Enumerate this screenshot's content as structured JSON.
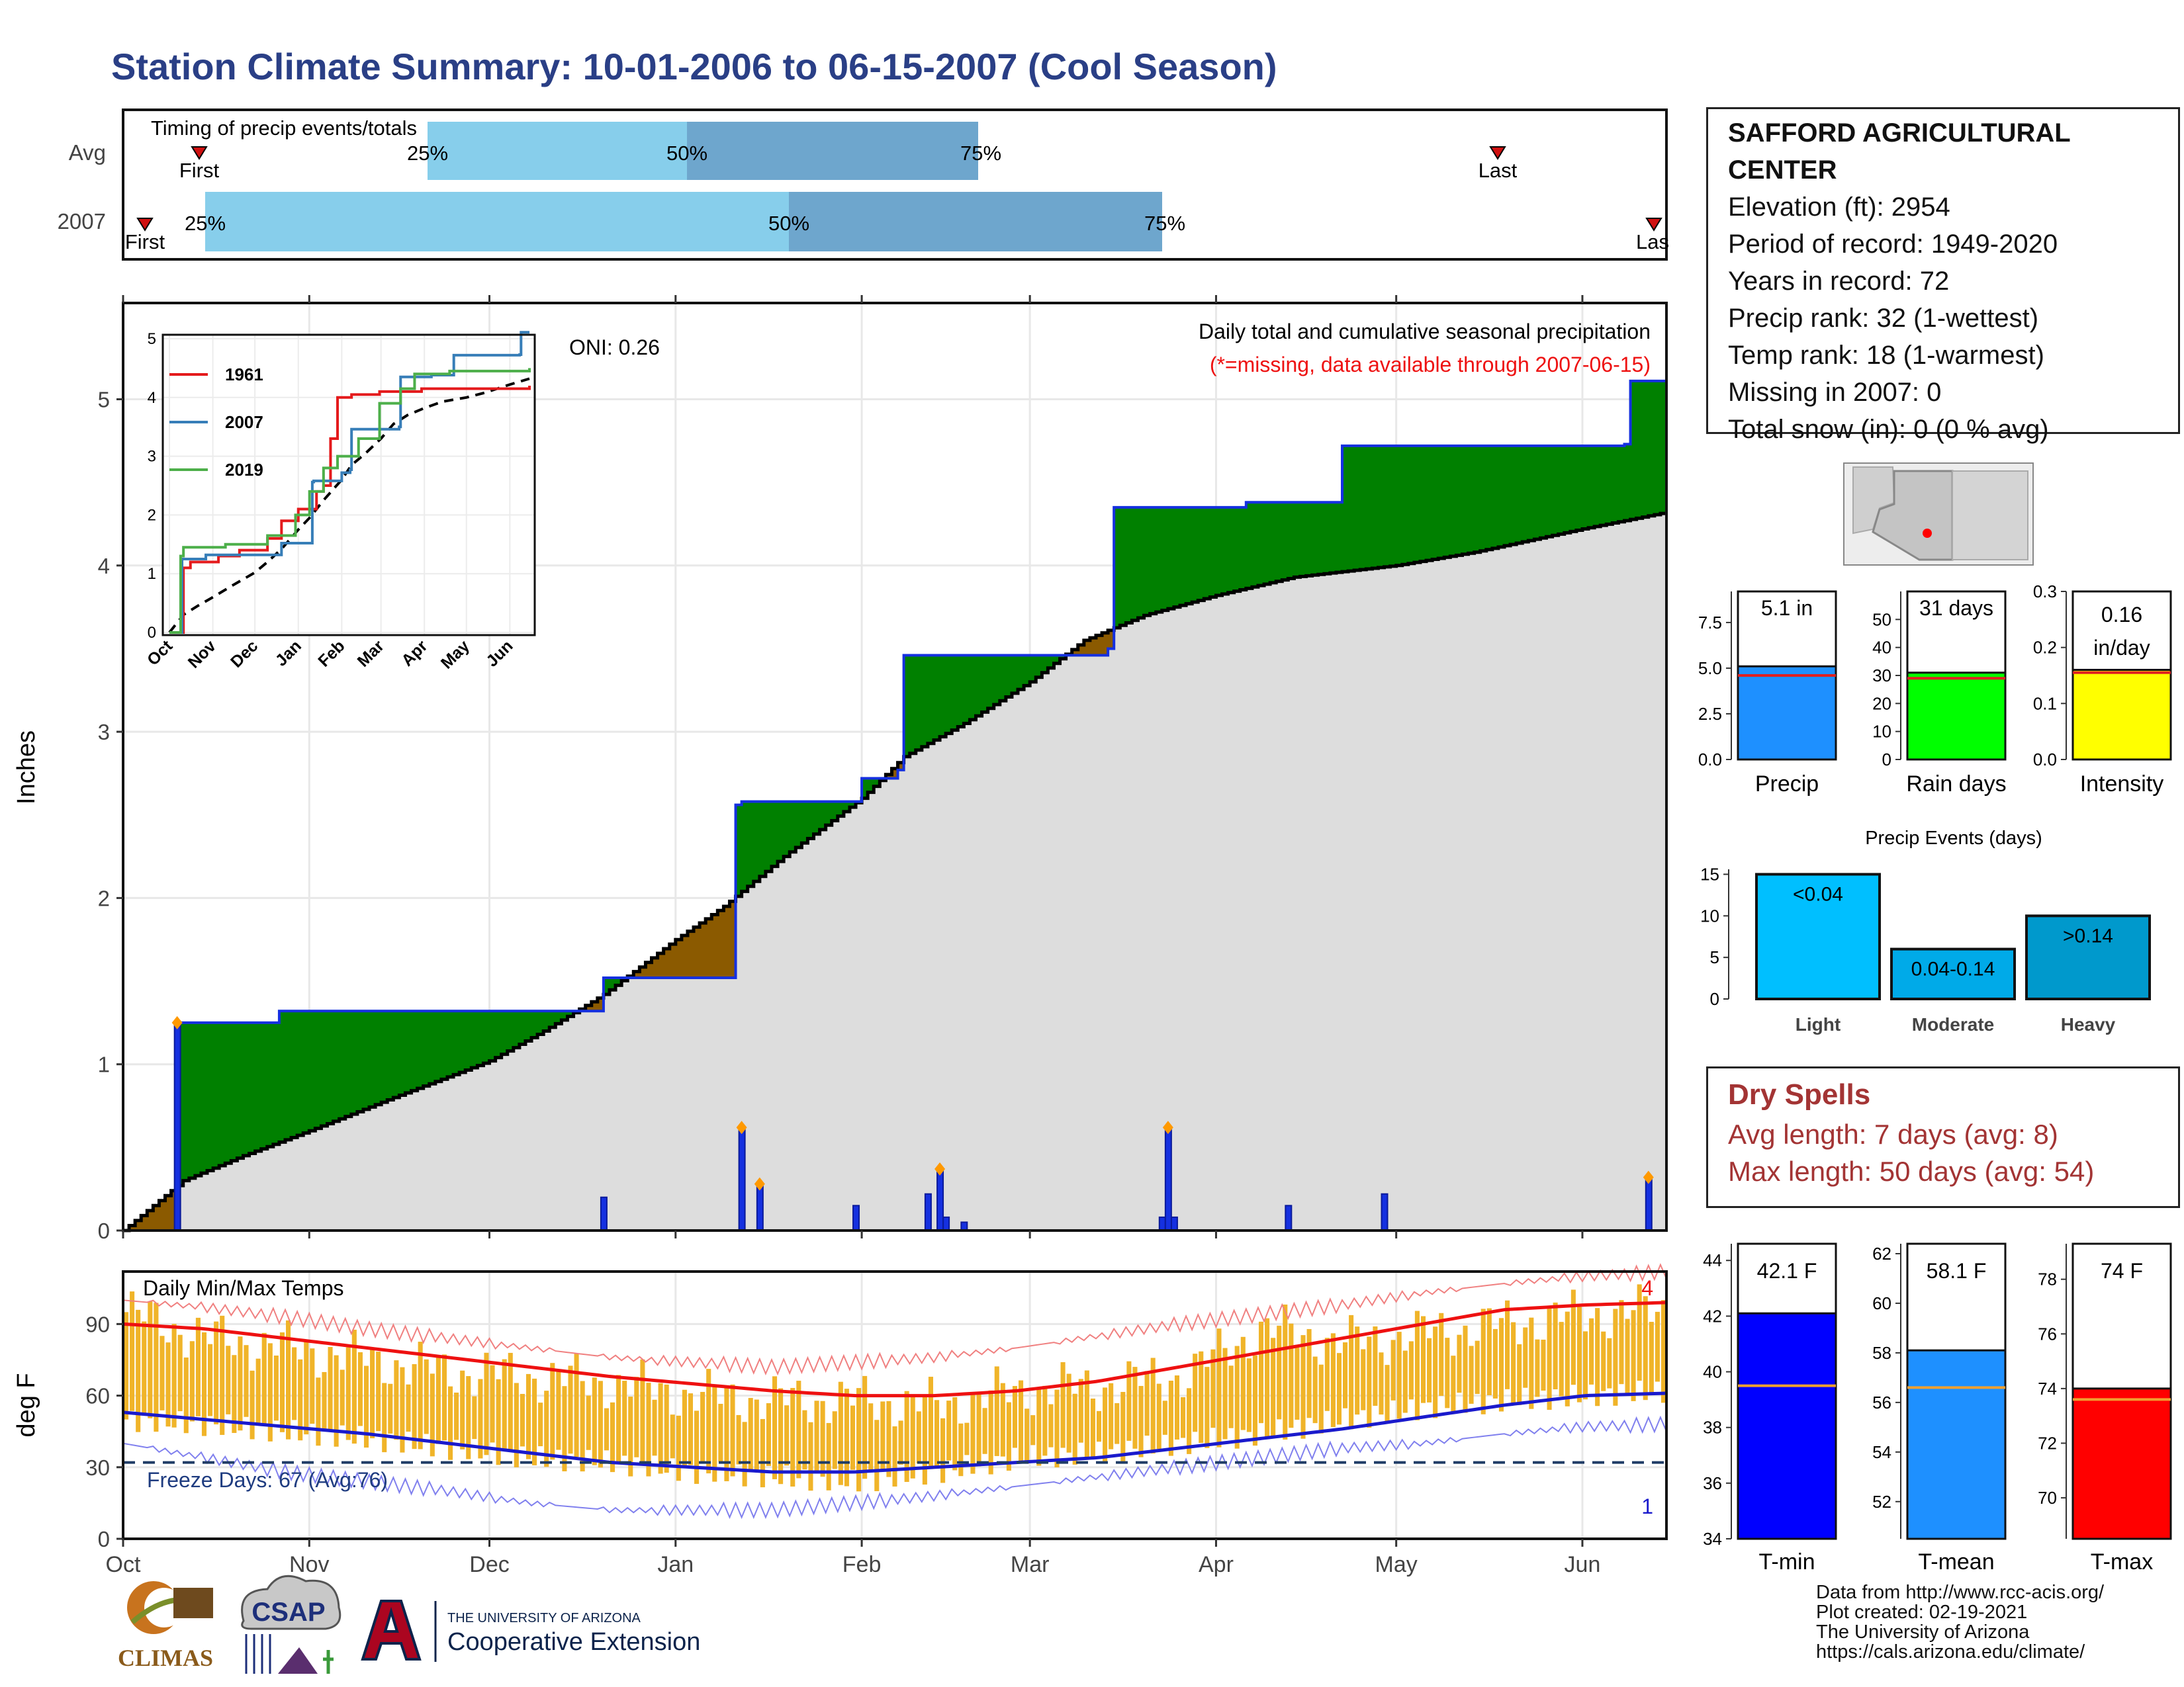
{
  "title": "Station Climate Summary: 10-01-2006 to 06-15-2007 (Cool Season)",
  "colors": {
    "title": "#2a3f86",
    "above_avg": "#008000",
    "below_avg": "#8b5a00",
    "climatology_fill": "#dddddd",
    "obs_line": "#1530e0",
    "tmax_avg": "#ee1111",
    "tmin_avg": "#1a1acc",
    "temp_bar": "#f0b429",
    "q1": "#87ceeb",
    "q2": "#6ea6cd",
    "dry": "#a33434"
  },
  "timing": {
    "label": "Timing of precip events/totals",
    "rows": [
      "Avg",
      "2007"
    ],
    "first_label": "First",
    "last_label": "Last",
    "last_label_2007": "Las",
    "pct25": "25%",
    "pct50": "50%",
    "pct75": "75%"
  },
  "station": {
    "name": "SAFFORD AGRICULTURAL CENTER",
    "lines": [
      "Elevation (ft): 2954",
      "Period of record: 1949-2020",
      "Years in record: 72",
      "Precip rank: 32 (1-wettest)",
      "Temp rank: 18 (1-warmest)",
      "Missing in 2007: 0",
      "Total snow (in): 0 (0 % avg)"
    ]
  },
  "precip_panel": {
    "oni": "ONI: 0.26",
    "note1": "Daily total and cumulative seasonal precipitation",
    "note2": "(*=missing, data available through 2007-06-15)",
    "ylabel": "Inches",
    "yticks": [
      "0",
      "1",
      "2",
      "3",
      "4",
      "5"
    ]
  },
  "temp_panel": {
    "label": "Daily Min/Max Temps",
    "ylabel": "deg F",
    "yticks": [
      "0",
      "30",
      "60",
      "90"
    ],
    "freeze": "Freeze Days: 67 (Avg:76)",
    "record_high_count": "4",
    "record_low_count": "1"
  },
  "months": [
    "Oct",
    "Nov",
    "Dec",
    "Jan",
    "Feb",
    "Mar",
    "Apr",
    "May",
    "Jun"
  ],
  "inset": {
    "yticks": [
      "0",
      "1",
      "2",
      "3",
      "4",
      "5"
    ],
    "months": [
      "Oct",
      "Nov",
      "Dec",
      "Jan",
      "Feb",
      "Mar",
      "Apr",
      "May",
      "Jun"
    ],
    "legend": [
      "1961",
      "2007",
      "2019"
    ]
  },
  "mini_bars": [
    {
      "name": "precip",
      "label": "Precip",
      "value_text": "5.1 in",
      "value": 5.1,
      "avg": 4.6,
      "ymax": 9.2,
      "ticks": [
        "0.0",
        "2.5",
        "5.0",
        "7.5"
      ],
      "color": "#1e90ff"
    },
    {
      "name": "rain-days",
      "label": "Rain days",
      "value_text": "31 days",
      "value": 31,
      "avg": 29,
      "ymax": 60,
      "ticks": [
        "0",
        "10",
        "20",
        "30",
        "40",
        "50"
      ],
      "color": "#00ff00"
    },
    {
      "name": "intensity",
      "label": "Intensity",
      "value_text": "0.16 in/day",
      "value": 0.16,
      "avg": 0.155,
      "ymax": 0.3,
      "ticks": [
        "0.0",
        "0.1",
        "0.2",
        "0.3"
      ],
      "color": "#ffff00"
    }
  ],
  "events": {
    "title": "Precip Events (days)",
    "yticks": [
      "0",
      "5",
      "10",
      "15"
    ],
    "bars": [
      {
        "label": "Light",
        "text": "<0.04",
        "value": 15,
        "color": "#00bfff"
      },
      {
        "label": "Moderate",
        "text": "0.04-0.14",
        "value": 6,
        "color": "#00aae8"
      },
      {
        "label": "Heavy",
        "text": ">0.14",
        "value": 10,
        "color": "#0099cc"
      }
    ]
  },
  "dry_spells": {
    "title": "Dry Spells",
    "avg": "Avg length: 7 days (avg: 8)",
    "max": "Max length: 50 days (avg: 54)"
  },
  "temp_bars": [
    {
      "name": "t-min",
      "label": "T-min",
      "value_text": "42.1 F",
      "value": 42.1,
      "avg": 39.5,
      "ymin": 34,
      "ymax": 44.6,
      "ticks": [
        "34",
        "36",
        "38",
        "40",
        "42",
        "44"
      ],
      "color": "#0000ff"
    },
    {
      "name": "t-mean",
      "label": "T-mean",
      "value_text": "58.1 F",
      "value": 58.1,
      "avg": 56.6,
      "ymin": 50.5,
      "ymax": 62.4,
      "ticks": [
        "52",
        "54",
        "56",
        "58",
        "60",
        "62"
      ],
      "color": "#1e90ff"
    },
    {
      "name": "t-max",
      "label": "T-max",
      "value_text": "74 F",
      "value": 74,
      "avg": 73.6,
      "ymin": 68.5,
      "ymax": 79.3,
      "ticks": [
        "70",
        "72",
        "74",
        "76",
        "78"
      ],
      "color": "#ff0000"
    }
  ],
  "credits": [
    "Data from http://www.rcc-acis.org/",
    "Plot created: 02-19-2021",
    "The University of Arizona",
    "https://cals.arizona.edu/climate/"
  ],
  "logos": {
    "climas": "CLIMAS",
    "csap": "CSAP",
    "ua_line1": "THE UNIVERSITY OF ARIZONA",
    "ua_line2": "Cooperative Extension"
  },
  "chart_data": {
    "type": "area",
    "x_unit": "day of season (day 1 = Oct 1, 2006)",
    "month_starts": [
      0,
      31,
      61,
      92,
      123,
      151,
      182,
      212,
      243
    ],
    "climatology_cumulative": {
      "days": [
        0,
        10,
        20,
        31,
        45,
        61,
        70,
        80,
        92,
        100,
        110,
        123,
        130,
        140,
        151,
        160,
        170,
        182,
        195,
        212,
        225,
        243,
        257
      ],
      "values": [
        0,
        0.3,
        0.45,
        0.6,
        0.8,
        1.02,
        1.2,
        1.42,
        1.75,
        1.95,
        2.25,
        2.6,
        2.85,
        3.05,
        3.3,
        3.55,
        3.7,
        3.82,
        3.93,
        4.0,
        4.08,
        4.22,
        4.32
      ]
    },
    "observed_cumulative": {
      "days": [
        0,
        8,
        9,
        26,
        72,
        80,
        96,
        102,
        103,
        123,
        129,
        130,
        150,
        164,
        165,
        187,
        203,
        250,
        251,
        257
      ],
      "values": [
        0,
        0,
        1.25,
        1.32,
        1.32,
        1.52,
        1.52,
        2.56,
        2.58,
        2.72,
        2.77,
        3.46,
        3.46,
        3.5,
        4.35,
        4.38,
        4.72,
        4.73,
        5.11,
        5.11
      ]
    },
    "daily_precip": [
      {
        "day": 9,
        "value": 1.25
      },
      {
        "day": 80,
        "value": 0.2
      },
      {
        "day": 103,
        "value": 0.62
      },
      {
        "day": 106,
        "value": 0.28
      },
      {
        "day": 122,
        "value": 0.15
      },
      {
        "day": 134,
        "value": 0.22
      },
      {
        "day": 136,
        "value": 0.37
      },
      {
        "day": 137,
        "value": 0.08
      },
      {
        "day": 140,
        "value": 0.05
      },
      {
        "day": 173,
        "value": 0.08
      },
      {
        "day": 174,
        "value": 0.62
      },
      {
        "day": 175,
        "value": 0.08
      },
      {
        "day": 194,
        "value": 0.15
      },
      {
        "day": 210,
        "value": 0.22
      },
      {
        "day": 254,
        "value": 0.32
      }
    ],
    "inset_series": [
      {
        "name": "1961",
        "color": "#e41a1c",
        "days": [
          0,
          10,
          15,
          35,
          50,
          70,
          80,
          92,
          105,
          110,
          115,
          120,
          130,
          150,
          180,
          210,
          257
        ],
        "values": [
          0,
          1.1,
          1.2,
          1.3,
          1.4,
          1.6,
          1.9,
          2.1,
          2.4,
          2.5,
          3.3,
          4.0,
          4.05,
          4.1,
          4.15,
          4.15,
          4.2
        ]
      },
      {
        "name": "2007",
        "color": "#377eb8",
        "days": [
          0,
          8,
          9,
          26,
          72,
          80,
          96,
          102,
          103,
          123,
          129,
          130,
          150,
          164,
          165,
          187,
          203,
          250,
          251,
          257
        ],
        "values": [
          0,
          0,
          1.25,
          1.32,
          1.32,
          1.52,
          1.52,
          2.56,
          2.58,
          2.72,
          2.77,
          3.46,
          3.46,
          3.5,
          4.35,
          4.38,
          4.72,
          4.73,
          5.11,
          5.11
        ]
      },
      {
        "name": "2019",
        "color": "#4daf4a",
        "days": [
          0,
          8,
          10,
          40,
          70,
          90,
          100,
          110,
          120,
          135,
          150,
          165,
          175,
          200,
          257
        ],
        "values": [
          0,
          1.3,
          1.45,
          1.5,
          1.65,
          2.0,
          2.4,
          2.8,
          3.0,
          3.3,
          3.9,
          4.15,
          4.4,
          4.45,
          4.5
        ]
      }
    ],
    "temperature": {
      "avg_max": [
        90,
        88,
        84,
        80,
        76,
        72,
        68,
        65,
        62,
        60,
        60,
        62,
        66,
        72,
        78,
        84,
        90,
        96,
        98,
        99
      ],
      "avg_min": [
        53,
        50,
        47,
        44,
        40,
        36,
        32,
        30,
        28,
        28,
        30,
        32,
        34,
        38,
        42,
        46,
        51,
        56,
        60,
        61
      ],
      "rec_max": [
        100,
        97,
        93,
        88,
        84,
        80,
        76,
        74,
        72,
        74,
        76,
        80,
        85,
        90,
        94,
        98,
        103,
        107,
        110,
        112
      ],
      "rec_min": [
        40,
        34,
        28,
        24,
        20,
        15,
        12,
        12,
        12,
        15,
        18,
        22,
        26,
        30,
        34,
        38,
        40,
        44,
        47,
        48
      ],
      "obs_max": [
        95,
        84,
        80,
        75,
        70,
        68,
        65,
        60,
        58,
        58,
        56,
        62,
        64,
        68,
        88,
        82,
        86,
        90,
        94,
        96
      ],
      "obs_min": [
        50,
        48,
        45,
        42,
        38,
        34,
        32,
        28,
        26,
        24,
        28,
        34,
        36,
        40,
        44,
        50,
        55,
        58,
        60,
        62
      ],
      "freeze_line": 32,
      "ylim": [
        0,
        112
      ]
    }
  }
}
